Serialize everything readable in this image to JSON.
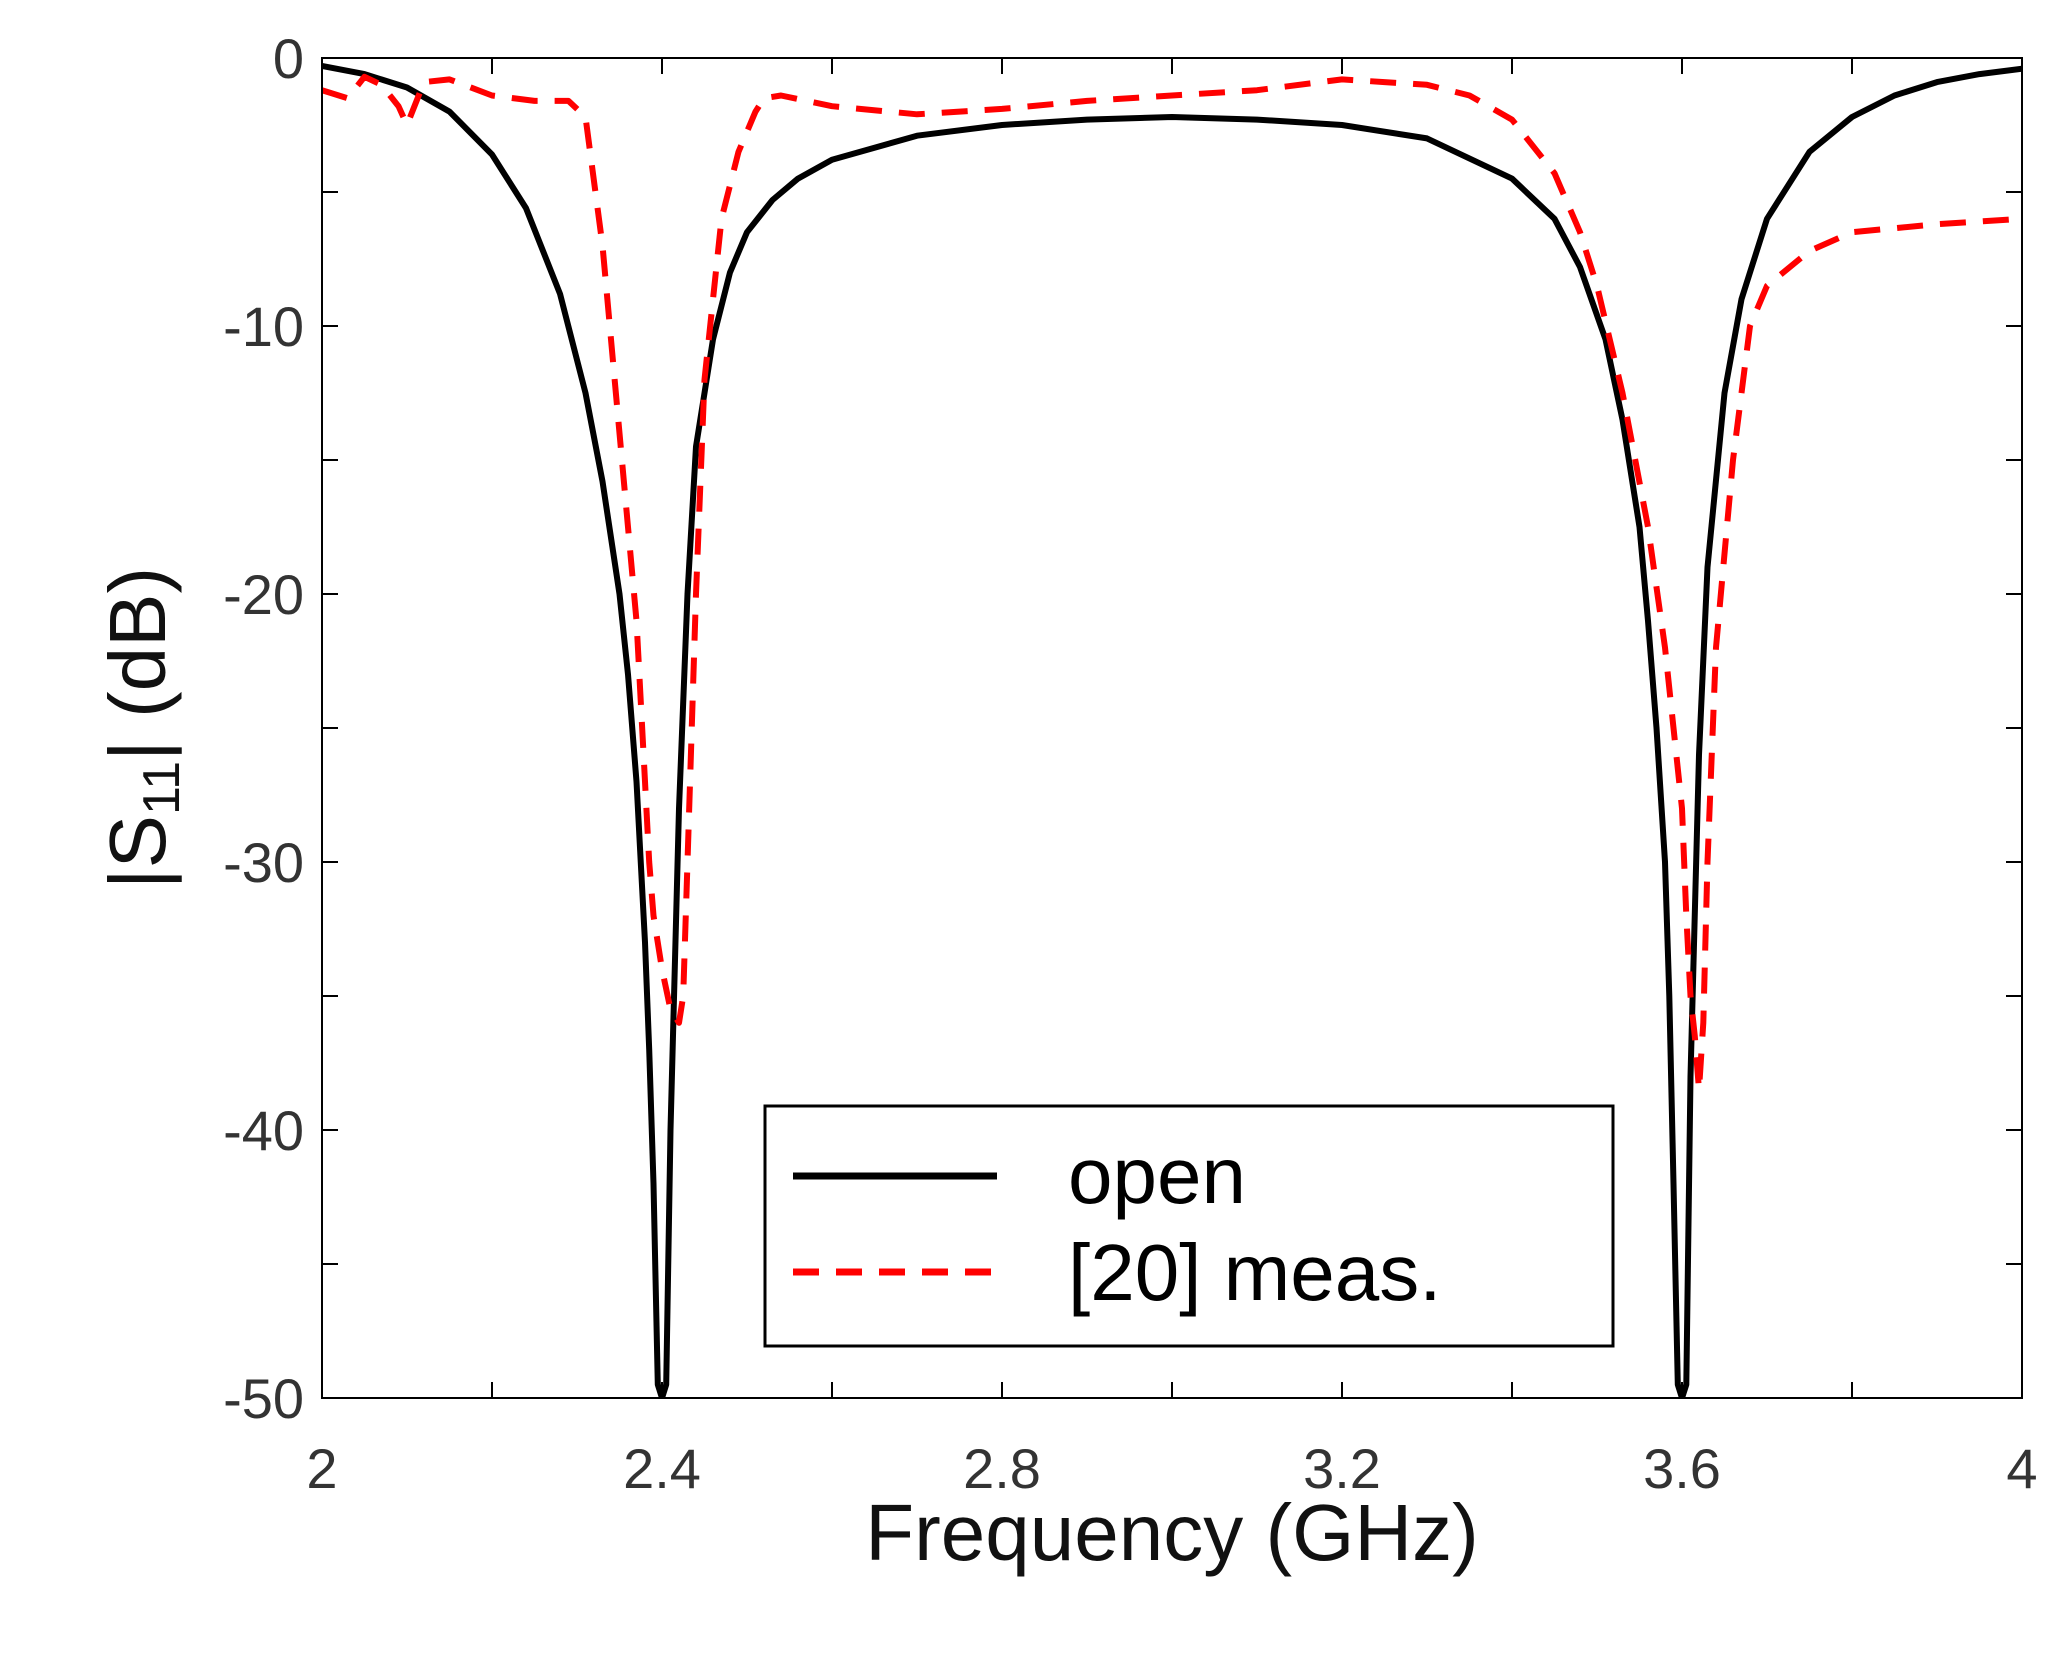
{
  "chart_data": {
    "type": "line",
    "title": "",
    "xlabel": "Frequency  (GHz)",
    "ylabel": {
      "prefix": "|S",
      "sub": "11",
      "suffix": "|  (dB)"
    },
    "xlim": [
      2,
      4
    ],
    "ylim": [
      -50,
      0
    ],
    "xticks": [
      2,
      2.2,
      2.4,
      2.6,
      2.8,
      3.0,
      3.2,
      3.4,
      3.6,
      3.8,
      4
    ],
    "xtick_labels": [
      {
        "v": 2,
        "t": "2"
      },
      {
        "v": 2.4,
        "t": "2.4"
      },
      {
        "v": 2.8,
        "t": "2.8"
      },
      {
        "v": 3.2,
        "t": "3.2"
      },
      {
        "v": 3.6,
        "t": "3.6"
      },
      {
        "v": 4,
        "t": "4"
      }
    ],
    "yticks": [
      0,
      -5,
      -10,
      -15,
      -20,
      -25,
      -30,
      -35,
      -40,
      -45,
      -50
    ],
    "ytick_labels": [
      {
        "v": 0,
        "t": "0"
      },
      {
        "v": -10,
        "t": "-10"
      },
      {
        "v": -20,
        "t": "-20"
      },
      {
        "v": -30,
        "t": "-30"
      },
      {
        "v": -40,
        "t": "-40"
      },
      {
        "v": -50,
        "t": "-50"
      }
    ],
    "grid": false,
    "legend_position": "bottom-center",
    "series": [
      {
        "name": "open",
        "color": "#000000",
        "style": "solid",
        "x": [
          2.0,
          2.05,
          2.1,
          2.15,
          2.2,
          2.24,
          2.28,
          2.31,
          2.33,
          2.35,
          2.36,
          2.37,
          2.38,
          2.385,
          2.39,
          2.395,
          2.4,
          2.405,
          2.41,
          2.42,
          2.43,
          2.44,
          2.46,
          2.48,
          2.5,
          2.53,
          2.56,
          2.6,
          2.7,
          2.8,
          2.9,
          3.0,
          3.1,
          3.2,
          3.3,
          3.4,
          3.45,
          3.48,
          3.51,
          3.53,
          3.55,
          3.56,
          3.57,
          3.58,
          3.585,
          3.59,
          3.595,
          3.6,
          3.605,
          3.61,
          3.62,
          3.63,
          3.65,
          3.67,
          3.7,
          3.75,
          3.8,
          3.85,
          3.9,
          3.95,
          4.0
        ],
        "y": [
          -0.3,
          -0.6,
          -1.1,
          -2.0,
          -3.6,
          -5.6,
          -8.8,
          -12.5,
          -15.8,
          -20.0,
          -23.0,
          -27.0,
          -33.0,
          -37.0,
          -42.0,
          -49.5,
          -50.0,
          -49.5,
          -40.0,
          -28.0,
          -20.0,
          -14.5,
          -10.5,
          -8.0,
          -6.5,
          -5.3,
          -4.5,
          -3.8,
          -2.9,
          -2.5,
          -2.3,
          -2.2,
          -2.3,
          -2.5,
          -3.0,
          -4.5,
          -6.0,
          -7.8,
          -10.5,
          -13.5,
          -17.5,
          -21.0,
          -25.0,
          -30.0,
          -35.0,
          -42.0,
          -49.5,
          -50.0,
          -49.5,
          -38.0,
          -26.0,
          -19.0,
          -12.5,
          -9.0,
          -6.0,
          -3.5,
          -2.2,
          -1.4,
          -0.9,
          -0.6,
          -0.4
        ]
      },
      {
        "name": "[20] meas.",
        "color": "#ff0000",
        "style": "dashed",
        "x": [
          2.0,
          2.03,
          2.05,
          2.07,
          2.09,
          2.1,
          2.12,
          2.15,
          2.2,
          2.25,
          2.29,
          2.31,
          2.33,
          2.35,
          2.37,
          2.38,
          2.385,
          2.39,
          2.4,
          2.41,
          2.42,
          2.425,
          2.43,
          2.44,
          2.45,
          2.47,
          2.49,
          2.51,
          2.52,
          2.54,
          2.6,
          2.7,
          2.8,
          2.9,
          3.0,
          3.1,
          3.2,
          3.25,
          3.3,
          3.35,
          3.4,
          3.45,
          3.48,
          3.5,
          3.53,
          3.56,
          3.58,
          3.59,
          3.6,
          3.605,
          3.61,
          3.615,
          3.62,
          3.625,
          3.63,
          3.64,
          3.66,
          3.68,
          3.7,
          3.75,
          3.8,
          3.9,
          4.0
        ],
        "y": [
          -1.2,
          -1.5,
          -0.7,
          -1.0,
          -1.8,
          -2.5,
          -0.9,
          -0.8,
          -1.4,
          -1.6,
          -1.6,
          -2.2,
          -7.0,
          -14.0,
          -21.0,
          -27.0,
          -30.0,
          -32.0,
          -34.0,
          -35.5,
          -36.0,
          -35.0,
          -30.0,
          -20.0,
          -12.0,
          -6.0,
          -3.5,
          -2.0,
          -1.5,
          -1.4,
          -1.8,
          -2.1,
          -1.9,
          -1.6,
          -1.4,
          -1.2,
          -0.8,
          -0.9,
          -1.0,
          -1.4,
          -2.3,
          -4.3,
          -6.5,
          -8.5,
          -12.5,
          -17.5,
          -22.0,
          -25.0,
          -28.0,
          -32.0,
          -35.0,
          -36.5,
          -38.5,
          -36.0,
          -30.0,
          -22.0,
          -15.0,
          -10.0,
          -8.5,
          -7.2,
          -6.5,
          -6.2,
          -6.0
        ]
      }
    ]
  }
}
